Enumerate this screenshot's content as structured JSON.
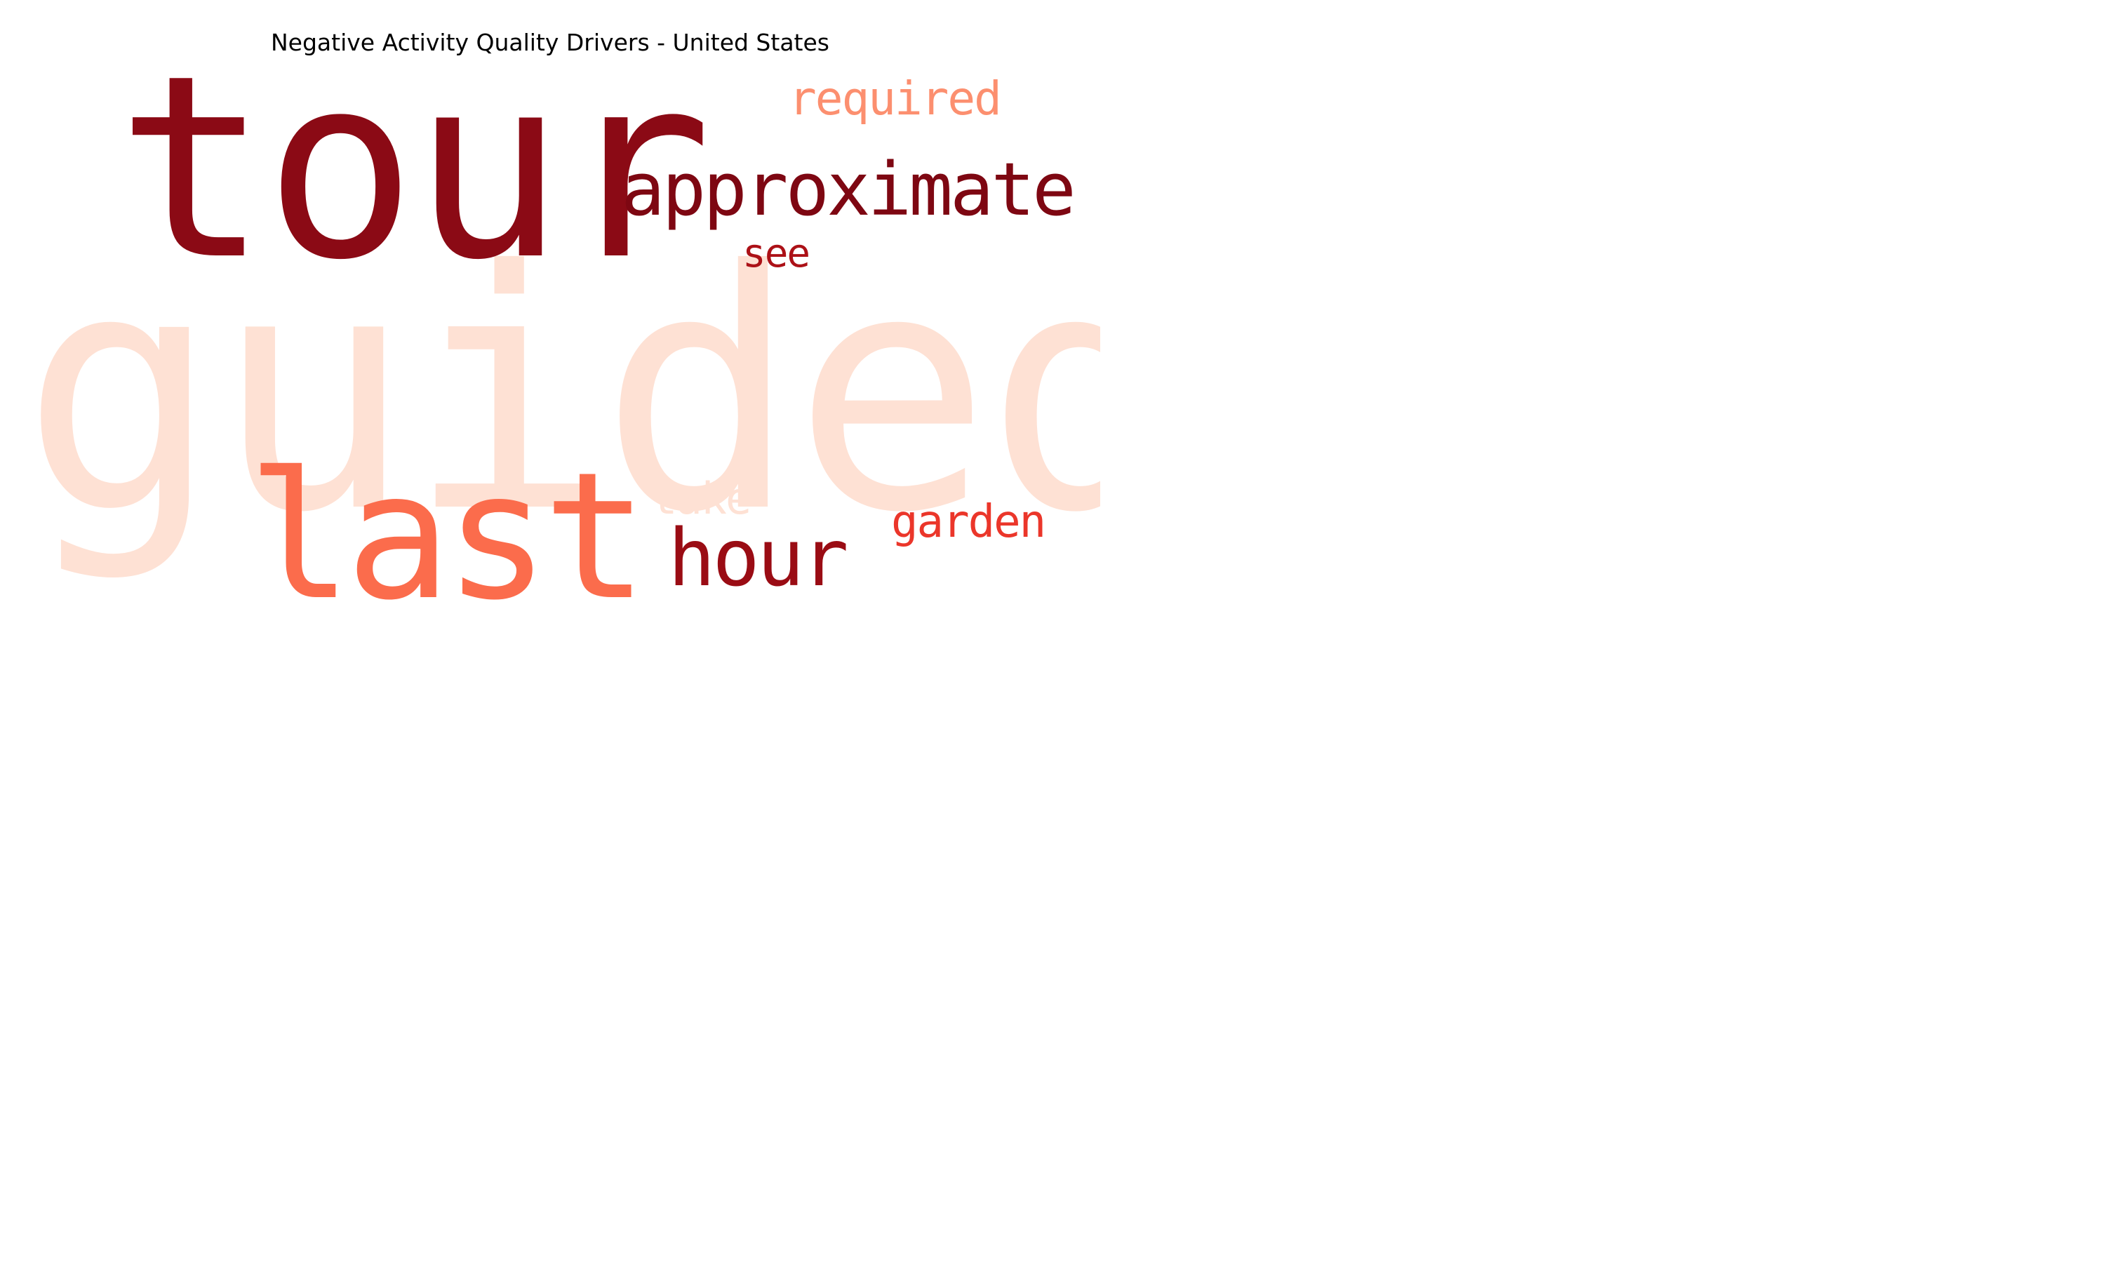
{
  "title": "Negative Activity Quality Drivers - United States",
  "words": {
    "guided": {
      "text": "guided",
      "color": "#FEE1D4"
    },
    "tour": {
      "text": "tour",
      "color": "#8B0A15"
    },
    "approximate": {
      "text": "approximate",
      "color": "#7E0712"
    },
    "required": {
      "text": "required",
      "color": "#FC8F6F"
    },
    "see": {
      "text": "see",
      "color": "#AC1117"
    },
    "last": {
      "text": "last",
      "color": "#FB6C4C"
    },
    "hour": {
      "text": "hour",
      "color": "#9A0C14"
    },
    "take": {
      "text": "take",
      "color": "#FEE1D4"
    },
    "garden": {
      "text": "garden",
      "color": "#EB362A"
    }
  }
}
